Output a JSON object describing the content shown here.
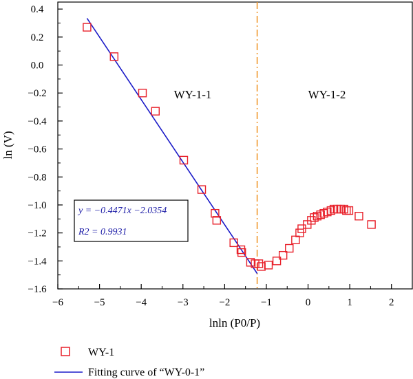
{
  "chart_data": {
    "type": "scatter",
    "xlabel": "lnln (P0/P)",
    "ylabel": "ln (V)",
    "xlim": [
      -6,
      2.5
    ],
    "ylim": [
      -1.6,
      0.45
    ],
    "x_ticks": [
      -6,
      -5,
      -4,
      -3,
      -2,
      -1,
      0,
      1,
      2
    ],
    "x_tick_labels": [
      "−6",
      "−5",
      "−4",
      "−3",
      "−2",
      "−1",
      "0",
      "1",
      "2"
    ],
    "y_ticks": [
      0.4,
      0.2,
      0.0,
      -0.2,
      -0.4,
      -0.6,
      -0.8,
      -1.0,
      -1.2,
      -1.4,
      -1.6
    ],
    "y_tick_labels": [
      "0.4",
      "0.2",
      "0.0",
      "−0.2",
      "−0.4",
      "−0.6",
      "−0.8",
      "−1.0",
      "−1.2",
      "−1.4",
      "−1.6"
    ],
    "grid": false,
    "legend_position": "bottom-left, below plot",
    "series": [
      {
        "name": "WY-1",
        "marker": "open-square",
        "color": "#e8202a",
        "x": [
          -5.3,
          -4.65,
          -3.97,
          -3.66,
          -2.98,
          -2.55,
          -2.23,
          -2.19,
          -1.78,
          -1.61,
          -1.59,
          -1.38,
          -1.27,
          -1.18,
          -1.12,
          -0.95,
          -0.75,
          -0.6,
          -0.45,
          -0.3,
          -0.2,
          -0.15,
          -0.02,
          0.08,
          0.15,
          0.22,
          0.3,
          0.38,
          0.46,
          0.55,
          0.62,
          0.7,
          0.78,
          0.86,
          0.92,
          0.98,
          1.22,
          1.52
        ],
        "y": [
          0.27,
          0.06,
          -0.2,
          -0.33,
          -0.68,
          -0.89,
          -1.06,
          -1.11,
          -1.27,
          -1.32,
          -1.34,
          -1.41,
          -1.42,
          -1.42,
          -1.44,
          -1.43,
          -1.4,
          -1.36,
          -1.31,
          -1.25,
          -1.2,
          -1.17,
          -1.14,
          -1.11,
          -1.09,
          -1.08,
          -1.07,
          -1.06,
          -1.05,
          -1.04,
          -1.03,
          -1.03,
          -1.03,
          -1.03,
          -1.04,
          -1.04,
          -1.08,
          -1.14
        ]
      },
      {
        "name": "Fitting curve of “WY-0-1”",
        "type": "line",
        "color": "#1a1ac8",
        "x": [
          -5.3,
          -1.22
        ],
        "y": [
          0.334,
          -1.49
        ]
      }
    ],
    "vertical_reference_line": {
      "x": -1.22,
      "color": "#f0962a",
      "style": "dash-dot"
    },
    "annotations": {
      "region_left": "WY-1-1",
      "region_right": "WY-1-2",
      "equation": "y = −0.4471x −2.0354",
      "r_squared": "R2 = 0.9931"
    },
    "legend": [
      "WY-1",
      "Fitting curve of “WY-0-1”"
    ]
  }
}
